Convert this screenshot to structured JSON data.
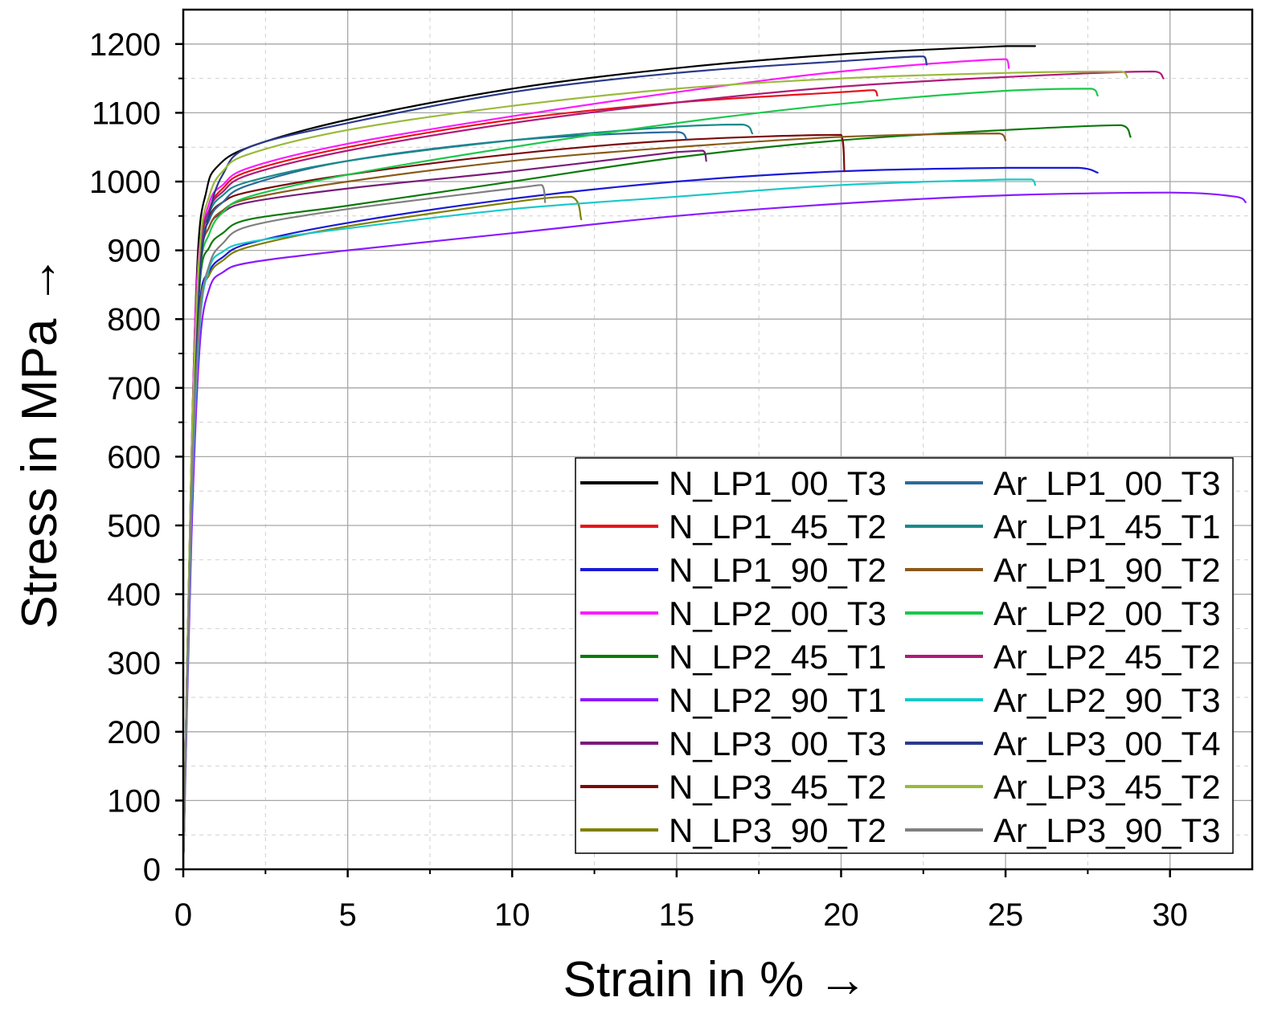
{
  "chart_data": {
    "type": "line",
    "title": "",
    "xlabel": "Strain in % →",
    "ylabel": "Stress in MPa →",
    "xlim": [
      0,
      32.5
    ],
    "ylim": [
      0,
      1250
    ],
    "xticks": [
      0,
      5,
      10,
      15,
      20,
      25,
      30
    ],
    "yticks": [
      0,
      100,
      200,
      300,
      400,
      500,
      600,
      700,
      800,
      900,
      1000,
      1100,
      1200
    ],
    "grid": true,
    "legend_position": "bottom-right",
    "series": [
      {
        "name": "N_LP1_00_T3",
        "color": "#000000",
        "points": [
          [
            0,
            0
          ],
          [
            0.25,
            600
          ],
          [
            0.45,
            900
          ],
          [
            0.7,
            985
          ],
          [
            1,
            1020
          ],
          [
            2,
            1050
          ],
          [
            5,
            1090
          ],
          [
            10,
            1135
          ],
          [
            15,
            1165
          ],
          [
            20,
            1185
          ],
          [
            25,
            1197
          ],
          [
            25.9,
            1197
          ]
        ]
      },
      {
        "name": "N_LP1_45_T2",
        "color": "#e8121a",
        "points": [
          [
            0,
            0
          ],
          [
            0.25,
            580
          ],
          [
            0.5,
            880
          ],
          [
            0.8,
            960
          ],
          [
            1.2,
            990
          ],
          [
            2,
            1015
          ],
          [
            5,
            1050
          ],
          [
            10,
            1090
          ],
          [
            15,
            1115
          ],
          [
            20,
            1130
          ],
          [
            21,
            1133
          ],
          [
            21.1,
            1125
          ]
        ]
      },
      {
        "name": "N_LP1_90_T2",
        "color": "#1a1ad6",
        "points": [
          [
            0,
            0
          ],
          [
            0.25,
            560
          ],
          [
            0.5,
            820
          ],
          [
            0.8,
            870
          ],
          [
            1.2,
            890
          ],
          [
            2,
            910
          ],
          [
            5,
            940
          ],
          [
            10,
            975
          ],
          [
            15,
            1000
          ],
          [
            20,
            1015
          ],
          [
            25,
            1020
          ],
          [
            27.2,
            1020
          ],
          [
            27.8,
            1013
          ]
        ]
      },
      {
        "name": "N_LP2_00_T3",
        "color": "#ff1aff",
        "points": [
          [
            0,
            0
          ],
          [
            0.25,
            600
          ],
          [
            0.45,
            880
          ],
          [
            0.8,
            970
          ],
          [
            1.2,
            995
          ],
          [
            2,
            1020
          ],
          [
            5,
            1055
          ],
          [
            10,
            1095
          ],
          [
            15,
            1130
          ],
          [
            20,
            1160
          ],
          [
            25,
            1178
          ],
          [
            25.1,
            1165
          ]
        ]
      },
      {
        "name": "N_LP2_45_T1",
        "color": "#0a7a0a",
        "points": [
          [
            0,
            0
          ],
          [
            0.25,
            560
          ],
          [
            0.5,
            850
          ],
          [
            0.8,
            905
          ],
          [
            1.2,
            925
          ],
          [
            2,
            945
          ],
          [
            5,
            965
          ],
          [
            10,
            1000
          ],
          [
            15,
            1035
          ],
          [
            20,
            1060
          ],
          [
            25,
            1075
          ],
          [
            28.5,
            1082
          ],
          [
            28.8,
            1065
          ]
        ]
      },
      {
        "name": "N_LP2_90_T1",
        "color": "#8a1aff",
        "points": [
          [
            0,
            0
          ],
          [
            0.25,
            480
          ],
          [
            0.5,
            760
          ],
          [
            0.8,
            845
          ],
          [
            1.2,
            868
          ],
          [
            2,
            882
          ],
          [
            5,
            900
          ],
          [
            10,
            925
          ],
          [
            15,
            950
          ],
          [
            20,
            968
          ],
          [
            25,
            980
          ],
          [
            30,
            984
          ],
          [
            32,
            978
          ],
          [
            32.3,
            970
          ]
        ]
      },
      {
        "name": "N_LP3_00_T3",
        "color": "#7a1a7a",
        "points": [
          [
            0,
            0
          ],
          [
            0.25,
            570
          ],
          [
            0.5,
            870
          ],
          [
            0.8,
            935
          ],
          [
            1.2,
            955
          ],
          [
            2,
            970
          ],
          [
            5,
            990
          ],
          [
            10,
            1015
          ],
          [
            15,
            1043
          ],
          [
            15.8,
            1045
          ],
          [
            15.9,
            1030
          ]
        ]
      },
      {
        "name": "N_LP3_45_T2",
        "color": "#7a0a0a",
        "points": [
          [
            0,
            0
          ],
          [
            0.25,
            590
          ],
          [
            0.5,
            900
          ],
          [
            0.8,
            950
          ],
          [
            1.2,
            970
          ],
          [
            2,
            985
          ],
          [
            5,
            1010
          ],
          [
            10,
            1040
          ],
          [
            15,
            1060
          ],
          [
            20,
            1068
          ],
          [
            20.1,
            1015
          ]
        ]
      },
      {
        "name": "N_LP3_90_T2",
        "color": "#808000",
        "points": [
          [
            0,
            0
          ],
          [
            0.25,
            540
          ],
          [
            0.5,
            810
          ],
          [
            0.8,
            865
          ],
          [
            1.2,
            885
          ],
          [
            2,
            905
          ],
          [
            5,
            935
          ],
          [
            10,
            970
          ],
          [
            11.8,
            978
          ],
          [
            12.1,
            945
          ]
        ]
      },
      {
        "name": "Ar_LP1_00_T3",
        "color": "#2a6a9a",
        "points": [
          [
            0,
            0
          ],
          [
            0.25,
            580
          ],
          [
            0.5,
            880
          ],
          [
            0.8,
            945
          ],
          [
            1.2,
            970
          ],
          [
            2,
            995
          ],
          [
            5,
            1030
          ],
          [
            10,
            1060
          ],
          [
            15,
            1072
          ],
          [
            15.3,
            1062
          ]
        ]
      },
      {
        "name": "Ar_LP1_45_T1",
        "color": "#1a8a8a",
        "points": [
          [
            0,
            0
          ],
          [
            0.25,
            580
          ],
          [
            0.5,
            890
          ],
          [
            0.8,
            955
          ],
          [
            1.2,
            980
          ],
          [
            2,
            1000
          ],
          [
            5,
            1030
          ],
          [
            10,
            1060
          ],
          [
            15,
            1080
          ],
          [
            17,
            1083
          ],
          [
            17.3,
            1070
          ]
        ]
      },
      {
        "name": "Ar_LP1_90_T2",
        "color": "#8a5a1a",
        "points": [
          [
            0,
            0
          ],
          [
            0.25,
            560
          ],
          [
            0.5,
            870
          ],
          [
            0.8,
            935
          ],
          [
            1.2,
            958
          ],
          [
            2,
            975
          ],
          [
            5,
            1000
          ],
          [
            10,
            1030
          ],
          [
            15,
            1050
          ],
          [
            20,
            1065
          ],
          [
            24.8,
            1070
          ],
          [
            25,
            1060
          ]
        ]
      },
      {
        "name": "Ar_LP2_00_T3",
        "color": "#1ac84a",
        "points": [
          [
            0,
            0
          ],
          [
            0.25,
            570
          ],
          [
            0.5,
            860
          ],
          [
            0.8,
            925
          ],
          [
            1.2,
            955
          ],
          [
            2,
            978
          ],
          [
            5,
            1010
          ],
          [
            10,
            1050
          ],
          [
            15,
            1085
          ],
          [
            20,
            1113
          ],
          [
            25,
            1132
          ],
          [
            27.6,
            1135
          ],
          [
            27.8,
            1125
          ]
        ]
      },
      {
        "name": "Ar_LP2_45_T2",
        "color": "#b01a7a",
        "points": [
          [
            0,
            0
          ],
          [
            0.25,
            590
          ],
          [
            0.5,
            890
          ],
          [
            0.8,
            960
          ],
          [
            1.2,
            985
          ],
          [
            2,
            1010
          ],
          [
            5,
            1045
          ],
          [
            10,
            1085
          ],
          [
            15,
            1115
          ],
          [
            20,
            1138
          ],
          [
            25,
            1152
          ],
          [
            29.5,
            1160
          ],
          [
            29.8,
            1150
          ]
        ]
      },
      {
        "name": "Ar_LP2_90_T3",
        "color": "#1ac8c8",
        "points": [
          [
            0,
            0
          ],
          [
            0.25,
            520
          ],
          [
            0.5,
            790
          ],
          [
            0.8,
            875
          ],
          [
            1.2,
            898
          ],
          [
            2,
            912
          ],
          [
            5,
            932
          ],
          [
            10,
            960
          ],
          [
            15,
            978
          ],
          [
            20,
            995
          ],
          [
            25,
            1003
          ],
          [
            25.8,
            1003
          ],
          [
            25.9,
            995
          ]
        ]
      },
      {
        "name": "Ar_LP3_00_T4",
        "color": "#2a3a8a",
        "points": [
          [
            0,
            0
          ],
          [
            0.25,
            560
          ],
          [
            0.5,
            860
          ],
          [
            0.8,
            955
          ],
          [
            1.2,
            1010
          ],
          [
            2,
            1050
          ],
          [
            5,
            1085
          ],
          [
            10,
            1130
          ],
          [
            15,
            1158
          ],
          [
            20,
            1175
          ],
          [
            22.5,
            1182
          ],
          [
            22.6,
            1170
          ]
        ]
      },
      {
        "name": "Ar_LP3_45_T2",
        "color": "#9aba3a",
        "points": [
          [
            0,
            0
          ],
          [
            0.25,
            600
          ],
          [
            0.5,
            900
          ],
          [
            0.8,
            980
          ],
          [
            1.2,
            1015
          ],
          [
            2,
            1040
          ],
          [
            5,
            1075
          ],
          [
            10,
            1110
          ],
          [
            15,
            1135
          ],
          [
            20,
            1150
          ],
          [
            25,
            1158
          ],
          [
            28.5,
            1160
          ],
          [
            28.7,
            1152
          ]
        ]
      },
      {
        "name": "Ar_LP3_90_T3",
        "color": "#808080",
        "points": [
          [
            0,
            0
          ],
          [
            0.25,
            540
          ],
          [
            0.5,
            800
          ],
          [
            0.8,
            880
          ],
          [
            1.2,
            910
          ],
          [
            2,
            935
          ],
          [
            5,
            960
          ],
          [
            10,
            990
          ],
          [
            10.9,
            995
          ],
          [
            11,
            970
          ]
        ]
      }
    ]
  }
}
